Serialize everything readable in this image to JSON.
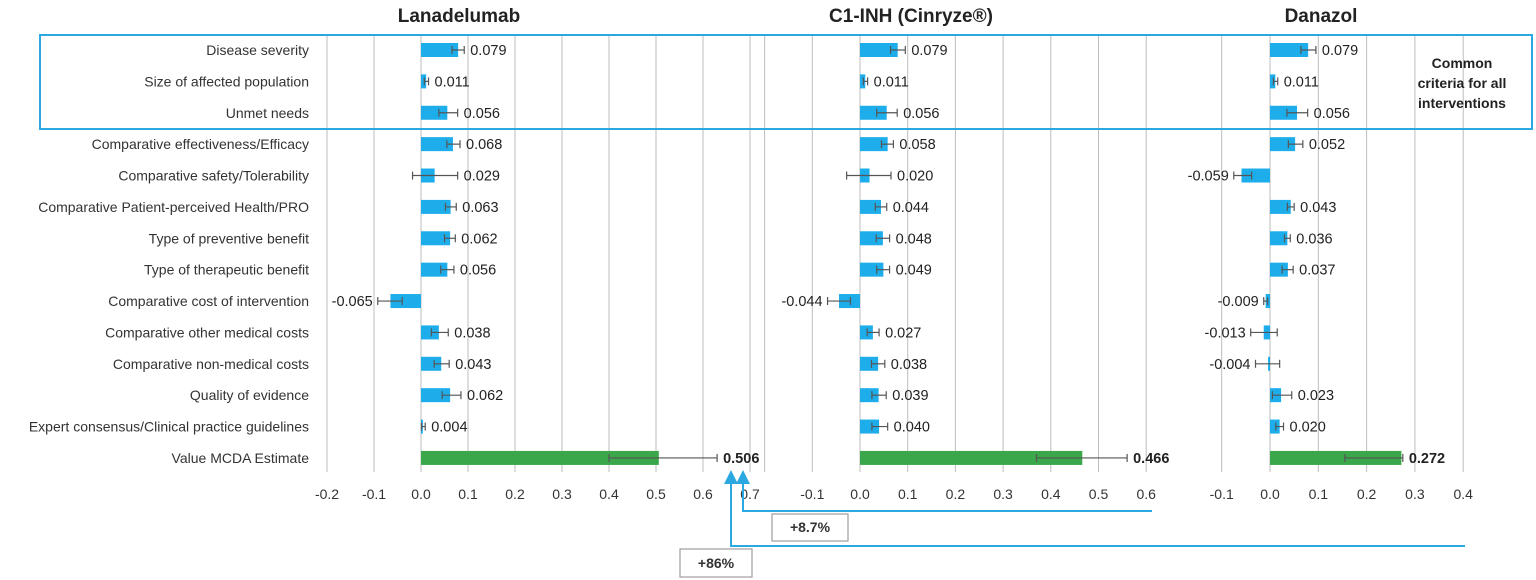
{
  "chart_data": {
    "type": "bar",
    "orientation": "horizontal",
    "criteria": [
      "Disease severity",
      "Size of affected population",
      "Unmet needs",
      "Comparative effectiveness/Efficacy",
      "Comparative safety/Tolerability",
      "Comparative Patient-perceived Health/PRO",
      "Type of preventive benefit",
      "Type of therapeutic benefit",
      "Comparative cost of intervention",
      "Comparative other medical costs",
      "Comparative non-medical costs",
      "Quality of evidence",
      "Expert consensus/Clinical practice guidelines",
      "Value MCDA Estimate"
    ],
    "panels": [
      {
        "title": "Lanadelumab",
        "values": [
          0.079,
          0.011,
          0.056,
          0.068,
          0.029,
          0.063,
          0.062,
          0.056,
          -0.065,
          0.038,
          0.043,
          0.062,
          0.004,
          0.506
        ],
        "labels": [
          "0.079",
          "0.011",
          "0.056",
          "0.068",
          "0.029",
          "0.063",
          "0.062",
          "0.056",
          "-0.065",
          "0.038",
          "0.043",
          "0.062",
          "0.004",
          "0.506"
        ],
        "err_low": [
          0.066,
          0.007,
          0.038,
          0.055,
          -0.018,
          0.052,
          0.05,
          0.042,
          -0.092,
          0.022,
          0.028,
          0.045,
          0.001,
          0.4
        ],
        "err_high": [
          0.092,
          0.016,
          0.078,
          0.083,
          0.078,
          0.075,
          0.073,
          0.07,
          -0.04,
          0.058,
          0.06,
          0.085,
          0.009,
          0.63
        ],
        "xlim": [
          -0.2,
          0.7
        ],
        "ticks": [
          "-0.2",
          "-0.1",
          "0.0",
          "0.1",
          "0.2",
          "0.3",
          "0.4",
          "0.5",
          "0.6",
          "0.7"
        ]
      },
      {
        "title": "C1-INH (Cinryze®)",
        "values": [
          0.079,
          0.011,
          0.056,
          0.058,
          0.02,
          0.044,
          0.048,
          0.049,
          -0.044,
          0.027,
          0.038,
          0.039,
          0.04,
          0.466
        ],
        "labels": [
          "0.079",
          "0.011",
          "0.056",
          "0.058",
          "0.020",
          "0.044",
          "0.048",
          "0.049",
          "-0.044",
          "0.027",
          "0.038",
          "0.039",
          "0.040",
          "0.466"
        ],
        "err_low": [
          0.064,
          0.007,
          0.035,
          0.045,
          -0.028,
          0.032,
          0.034,
          0.035,
          -0.068,
          0.015,
          0.024,
          0.025,
          0.025,
          0.37
        ],
        "err_high": [
          0.095,
          0.016,
          0.078,
          0.07,
          0.065,
          0.056,
          0.062,
          0.062,
          -0.02,
          0.04,
          0.052,
          0.055,
          0.058,
          0.56
        ],
        "xlim": [
          -0.2,
          0.6
        ],
        "ticks": [
          "-0.1",
          "0.0",
          "0.1",
          "0.2",
          "0.3",
          "0.4",
          "0.5",
          "0.6"
        ]
      },
      {
        "title": "Danazol",
        "values": [
          0.079,
          0.011,
          0.056,
          0.052,
          -0.059,
          0.043,
          0.036,
          0.037,
          -0.009,
          -0.013,
          -0.004,
          0.023,
          0.02,
          0.272
        ],
        "labels": [
          "0.079",
          "0.011",
          "0.056",
          "0.052",
          "-0.059",
          "0.043",
          "0.036",
          "0.037",
          "-0.009",
          "-0.013",
          "-0.004",
          "0.023",
          "0.020",
          "0.272"
        ],
        "err_low": [
          0.064,
          0.007,
          0.035,
          0.038,
          -0.075,
          0.036,
          0.03,
          0.025,
          -0.013,
          -0.04,
          -0.03,
          0.005,
          0.012,
          0.155
        ],
        "err_high": [
          0.095,
          0.016,
          0.078,
          0.068,
          -0.038,
          0.05,
          0.042,
          0.048,
          -0.005,
          0.015,
          0.02,
          0.045,
          0.028,
          0.275
        ],
        "xlim": [
          -0.1,
          0.4
        ],
        "ticks": [
          "-0.1",
          "0.0",
          "0.1",
          "0.2",
          "0.3",
          "0.4"
        ]
      }
    ],
    "common_criteria_count": 3,
    "common_criteria_label": [
      "Common",
      "criteria for all",
      "interventions"
    ],
    "annotations": [
      {
        "text": "+8.7%",
        "from": "C1-INH (Cinryze®)",
        "to": "Lanadelumab"
      },
      {
        "text": "+86%",
        "from": "Danazol",
        "to": "Lanadelumab"
      }
    ],
    "colors": {
      "bar": "#1DADEA",
      "estimate_bar": "#3AA84A",
      "grid": "#BDBDBD",
      "error_bar": "#555555",
      "highlight_box": "#2BA8DF",
      "annotation_arrow": "#2BA8DF",
      "annotation_box": "#9E9E9E"
    }
  }
}
